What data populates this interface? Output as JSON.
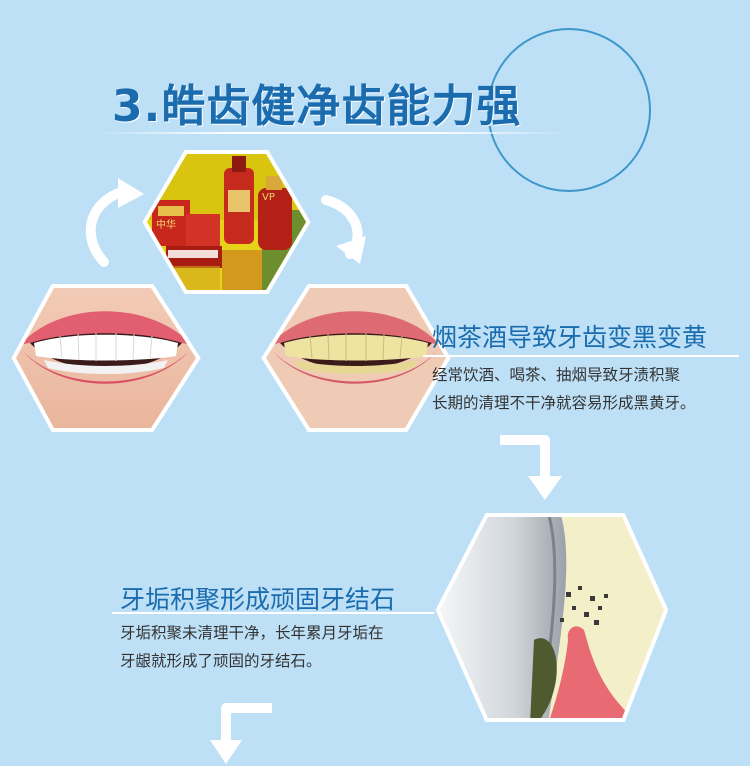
{
  "section": {
    "title": "3.皓齿健净齿能力强"
  },
  "block1": {
    "heading": "烟茶酒导致牙齿变黑变黄",
    "line1": "经常饮酒、喝茶、抽烟导致牙渍积聚",
    "line2": "长期的清理不干净就容易形成黑黄牙。"
  },
  "block2": {
    "heading": "牙垢积聚形成顽固牙结石",
    "line1": "牙垢积聚未清理干净，长年累月牙垢在",
    "line2": "牙龈就形成了顽固的牙结石。"
  },
  "products": {
    "box_label": "中华",
    "bottle_label": "VP"
  },
  "colors": {
    "background": "#bde0f7",
    "accent_blue": "#1b6cae",
    "white": "#ffffff"
  }
}
